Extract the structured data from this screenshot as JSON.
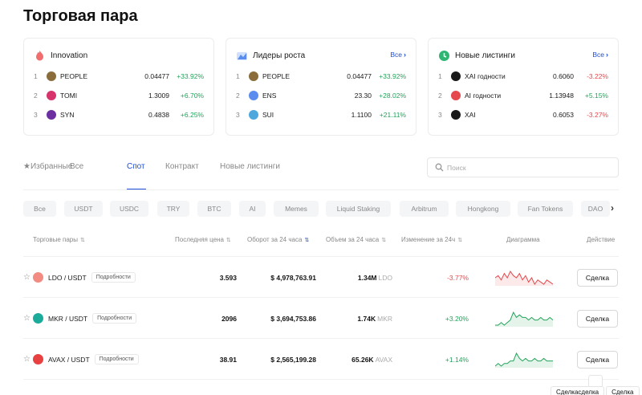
{
  "page_title": "Торговая пара",
  "cards": [
    {
      "title": "Innovation",
      "icon": "flame-icon",
      "show_all": false,
      "all_label": "",
      "rows": [
        {
          "rank": "1",
          "name": "PEOPLE",
          "price": "0.04477",
          "change": "+33.92%",
          "dir": "up",
          "coin_color": "#8a6d3b"
        },
        {
          "rank": "2",
          "name": "TOMI",
          "price": "1.3009",
          "change": "+6.70%",
          "dir": "up",
          "coin_color": "#d6336c"
        },
        {
          "rank": "3",
          "name": "SYN",
          "price": "0.4838",
          "change": "+6.25%",
          "dir": "up",
          "coin_color": "#6b2fa0"
        }
      ]
    },
    {
      "title": "Лидеры роста",
      "icon": "growth-chart-icon",
      "show_all": true,
      "all_label": "Все",
      "rows": [
        {
          "rank": "1",
          "name": "PEOPLE",
          "price": "0.04477",
          "change": "+33.92%",
          "dir": "up",
          "coin_color": "#8a6d3b"
        },
        {
          "rank": "2",
          "name": "ENS",
          "price": "23.30",
          "change": "+28.02%",
          "dir": "up",
          "coin_color": "#5b8def"
        },
        {
          "rank": "3",
          "name": "SUI",
          "price": "1.1100",
          "change": "+21.11%",
          "dir": "up",
          "coin_color": "#4ea8de"
        }
      ]
    },
    {
      "title": "Новые листинги",
      "icon": "clock-icon",
      "show_all": true,
      "all_label": "Все",
      "rows": [
        {
          "rank": "1",
          "name": "XAI годности",
          "price": "0.6060",
          "change": "-3.22%",
          "dir": "down",
          "coin_color": "#1a1a1a"
        },
        {
          "rank": "2",
          "name": "AI годности",
          "price": "1.13948",
          "change": "+5.15%",
          "dir": "up",
          "coin_color": "#e5484d"
        },
        {
          "rank": "3",
          "name": "XAI",
          "price": "0.6053",
          "change": "-3.27%",
          "dir": "down",
          "coin_color": "#1a1a1a"
        }
      ]
    }
  ],
  "tabs": [
    {
      "label": "Избранные",
      "active": false
    },
    {
      "label": "Все",
      "active": false
    },
    {
      "label": "Спот",
      "active": true
    },
    {
      "label": "Контракт",
      "active": false
    },
    {
      "label": "Новые листинги",
      "active": false
    }
  ],
  "search": {
    "placeholder": "Поиск"
  },
  "chips": [
    "Все",
    "USDT",
    "USDC",
    "TRY",
    "BTC",
    "AI",
    "Memes",
    "Liquid Staking",
    "Arbitrum",
    "Hongkong",
    "Fan Tokens",
    "DAO"
  ],
  "table": {
    "headers": {
      "pair": "Торговые пары",
      "last_price": "Последняя цена",
      "turnover": "Оборот за 24 часа",
      "volume": "Объем за 24 часа",
      "change": "Изменение за 24ч",
      "chart": "Диаграмма",
      "action": "Действие"
    },
    "rows": [
      {
        "pair": "LDO / USDT",
        "details": "Подробности",
        "price": "3.593",
        "turnover": "$ 4,978,763.91",
        "volume": "1.34M",
        "volume_unit": "LDO",
        "change": "-3.77%",
        "dir": "down",
        "coin_color": "#f28b82",
        "deal": "Сделка",
        "spark": [
          8,
          9,
          7,
          10,
          8,
          11,
          9,
          8,
          10,
          7,
          9,
          6,
          8,
          5,
          7,
          6,
          5,
          7,
          6,
          5
        ]
      },
      {
        "pair": "MKR / USDT",
        "details": "Подробности",
        "price": "2096",
        "turnover": "$ 3,694,753.86",
        "volume": "1.74K",
        "volume_unit": "MKR",
        "change": "+3.20%",
        "dir": "up",
        "coin_color": "#1aab9b",
        "deal": "Сделка",
        "spark": [
          4,
          4,
          5,
          4,
          5,
          6,
          9,
          7,
          8,
          7,
          7,
          6,
          7,
          6,
          6,
          7,
          6,
          6,
          7,
          6
        ]
      },
      {
        "pair": "AVAX / USDT",
        "details": "Подробности",
        "price": "38.91",
        "turnover": "$ 2,565,199.28",
        "volume": "65.26K",
        "volume_unit": "AVAX",
        "change": "+1.14%",
        "dir": "up",
        "coin_color": "#e84142",
        "deal": "Сделка",
        "spark": [
          4,
          5,
          4,
          5,
          5,
          6,
          6,
          9,
          7,
          6,
          7,
          6,
          6,
          7,
          6,
          6,
          7,
          6,
          6,
          6
        ]
      }
    ]
  },
  "popup": {
    "btn1": "Сделкасделка",
    "btn2": "Сделка"
  },
  "colors": {
    "accent": "#1d4ed8",
    "up": "#22a35a",
    "down": "#e5484d"
  }
}
